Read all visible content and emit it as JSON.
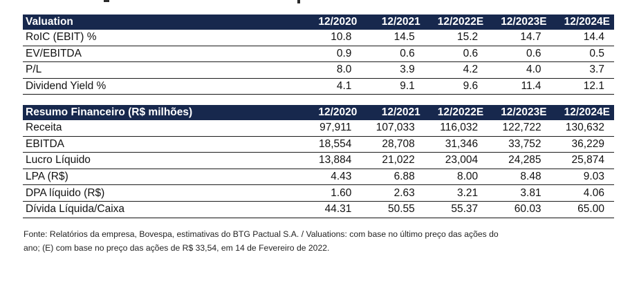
{
  "valuation": {
    "title": "Valuation",
    "columns": [
      "12/2020",
      "12/2021",
      "12/2022E",
      "12/2023E",
      "12/2024E"
    ],
    "rows": [
      {
        "label": "RoIC (EBIT) %",
        "values": [
          "10.8",
          "14.5",
          "15.2",
          "14.7",
          "14.4"
        ]
      },
      {
        "label": "EV/EBITDA",
        "values": [
          "0.9",
          "0.6",
          "0.6",
          "0.6",
          "0.5"
        ]
      },
      {
        "label": "P/L",
        "values": [
          "8.0",
          "3.9",
          "4.2",
          "4.0",
          "3.7"
        ]
      },
      {
        "label": "Dividend Yield %",
        "values": [
          "4.1",
          "9.1",
          "9.6",
          "11.4",
          "12.1"
        ]
      }
    ]
  },
  "financial": {
    "title": "Resumo Financeiro (R$ milhões)",
    "columns": [
      "12/2020",
      "12/2021",
      "12/2022E",
      "12/2023E",
      "12/2024E"
    ],
    "rows": [
      {
        "label": "Receita",
        "values": [
          "97,911",
          "107,033",
          "116,032",
          "122,722",
          "130,632"
        ]
      },
      {
        "label": "EBITDA",
        "values": [
          "18,554",
          "28,708",
          "31,346",
          "33,752",
          "36,229"
        ]
      },
      {
        "label": "Lucro Líquido",
        "values": [
          "13,884",
          "21,022",
          "23,004",
          "24,285",
          "25,874"
        ]
      },
      {
        "label": "LPA (R$)",
        "values": [
          "4.43",
          "6.88",
          "8.00",
          "8.48",
          "9.03"
        ]
      },
      {
        "label": "DPA líquido (R$)",
        "values": [
          "1.60",
          "2.63",
          "3.21",
          "3.81",
          "4.06"
        ]
      },
      {
        "label": "Dívida Líquida/Caixa",
        "values": [
          "44.31",
          "50.55",
          "55.37",
          "60.03",
          "65.00"
        ]
      }
    ]
  },
  "footnote": {
    "line1": "Fonte: Relatórios da empresa, Bovespa, estimativas do BTG Pactual S.A. / Valuations: com base no último preço das ações do",
    "line2": "ano; (E) com base no preço das ações de R$ 33,54, em 14 de Fevereiro de 2022."
  },
  "colors": {
    "header_bg": "#17284d",
    "header_text": "#ffffff"
  }
}
